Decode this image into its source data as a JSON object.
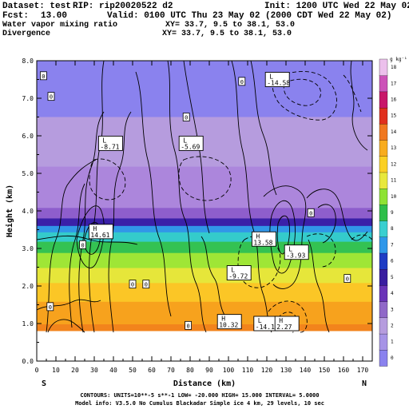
{
  "header": {
    "dataset": "Dataset: test",
    "rip": "RIP: rip20020522 d2",
    "init": "Init: 1200 UTC Wed 22 May 02",
    "fcst": "Fcst:",
    "fcst_value": "13.00",
    "valid": "Valid: 0100 UTC Thu 23 May 02 (2000 CDT Wed 22 May 02)",
    "field1": "Water vapor mixing ratio",
    "xy1": "XY=  33.7,  9.5 to  38.1, 53.0",
    "field2": "Divergence",
    "xy2": "XY=  33.7,  9.5 to  38.1, 53.0"
  },
  "footer": {
    "line1": "CONTOURS:  UNITS=10**-5 s**-1   LOW=  -20.000     HIGH=  15.000     INTERVAL=   5.0000",
    "line2": "Model info: V3.5.0 No Cumulus Blackadar  Simple ice    4 km,  29 levels,  10 sec"
  },
  "chart_data": {
    "type": "heatmap",
    "xlabel": "Distance (km)",
    "ylabel": "Height (km)",
    "xlim": [
      0,
      175
    ],
    "ylim": [
      0,
      8
    ],
    "x_ticks": [
      "0",
      "10",
      "20",
      "30",
      "40",
      "50",
      "60",
      "70",
      "80",
      "90",
      "100",
      "110",
      "120",
      "130",
      "140",
      "150",
      "160",
      "170"
    ],
    "y_ticks": [
      "0.0",
      "1.0",
      "2.0",
      "3.0",
      "4.0",
      "5.0",
      "6.0",
      "7.0",
      "8.0"
    ],
    "left_end_label": "S",
    "right_end_label": "N",
    "colorbar": {
      "units": "g kg⁻¹",
      "levels": [
        "0",
        "1",
        "2",
        "3",
        "4",
        "5",
        "6",
        "7",
        "8",
        "9",
        "10",
        "11",
        "12",
        "13",
        "14",
        "15",
        "16",
        "17",
        "18"
      ],
      "colors": [
        "#8a82ee",
        "#a693e6",
        "#b69cde",
        "#9068c8",
        "#6a34b8",
        "#3a1ea0",
        "#1e3cc4",
        "#2f97e9",
        "#3acfd0",
        "#2ebe4a",
        "#8ee234",
        "#e8e83c",
        "#fbd024",
        "#f8ac1e",
        "#f07820",
        "#e0301e",
        "#c8166a",
        "#cc52b8",
        "#ecc0ec"
      ]
    },
    "moisture_bands": [
      {
        "from": 0.0,
        "to": 0.82,
        "value": 17,
        "color": "#ffffff"
      },
      {
        "from": 0.82,
        "to": 1.0,
        "value": 15,
        "color": "#f2841c"
      },
      {
        "from": 1.0,
        "to": 1.6,
        "value": 14,
        "color": "#f7a21d"
      },
      {
        "from": 1.6,
        "to": 2.1,
        "value": 13,
        "color": "#fbc626"
      },
      {
        "from": 2.1,
        "to": 2.5,
        "value": 12,
        "color": "#e6e63a"
      },
      {
        "from": 2.5,
        "to": 2.9,
        "value": 11,
        "color": "#9fe636"
      },
      {
        "from": 2.9,
        "to": 3.2,
        "value": 10,
        "color": "#34c252"
      },
      {
        "from": 3.2,
        "to": 3.45,
        "value": 9,
        "color": "#34cbcb"
      },
      {
        "from": 3.45,
        "to": 3.62,
        "value": 8,
        "color": "#3196e8"
      },
      {
        "from": 3.62,
        "to": 3.82,
        "value": 6,
        "color": "#3a20a8"
      },
      {
        "from": 3.82,
        "to": 4.1,
        "value": 4,
        "color": "#8e5ecc"
      },
      {
        "from": 4.1,
        "to": 5.2,
        "value": 3,
        "color": "#ac86dc"
      },
      {
        "from": 5.2,
        "to": 6.5,
        "value": 2,
        "color": "#b69cde"
      },
      {
        "from": 6.5,
        "to": 8.0,
        "value": 1,
        "color": "#8a82ee"
      }
    ],
    "contour_labels": [
      {
        "text": "0",
        "x": 3.5,
        "y": 7.6
      },
      {
        "text": "0",
        "x": 7.5,
        "y": 7.05
      },
      {
        "text": "0",
        "x": 107,
        "y": 7.45
      },
      {
        "text": "0",
        "x": 78,
        "y": 6.5
      },
      {
        "text": "0",
        "x": 143,
        "y": 3.95
      },
      {
        "text": "0",
        "x": 24,
        "y": 3.1
      },
      {
        "text": "0",
        "x": 50,
        "y": 2.05
      },
      {
        "text": "0",
        "x": 57,
        "y": 2.05
      },
      {
        "text": "0",
        "x": 7,
        "y": 1.45
      },
      {
        "text": "0",
        "x": 79,
        "y": 0.95
      },
      {
        "text": "0",
        "x": 162,
        "y": 2.2
      }
    ],
    "extrema": [
      {
        "type": "L",
        "value": "-14.58",
        "x": 125.5,
        "y": 7.5
      },
      {
        "type": "L",
        "value": "-8.71",
        "x": 38.5,
        "y": 5.8
      },
      {
        "type": "L",
        "value": "-5.69",
        "x": 80.5,
        "y": 5.8
      },
      {
        "type": "H",
        "value": "14.61",
        "x": 33.5,
        "y": 3.45
      },
      {
        "type": "H",
        "value": "13.58",
        "x": 118.5,
        "y": 3.25
      },
      {
        "type": "L",
        "value": "-3.93",
        "x": 135.5,
        "y": 2.9
      },
      {
        "type": "L",
        "value": "-9.72",
        "x": 105.5,
        "y": 2.35
      },
      {
        "type": "H",
        "value": "10.32",
        "x": 100.5,
        "y": 1.05
      },
      {
        "type": "L",
        "value": "-14.14",
        "x": 119.5,
        "y": 1.0
      },
      {
        "type": "H",
        "value": "2.27",
        "x": 130.5,
        "y": 1.0
      }
    ]
  }
}
